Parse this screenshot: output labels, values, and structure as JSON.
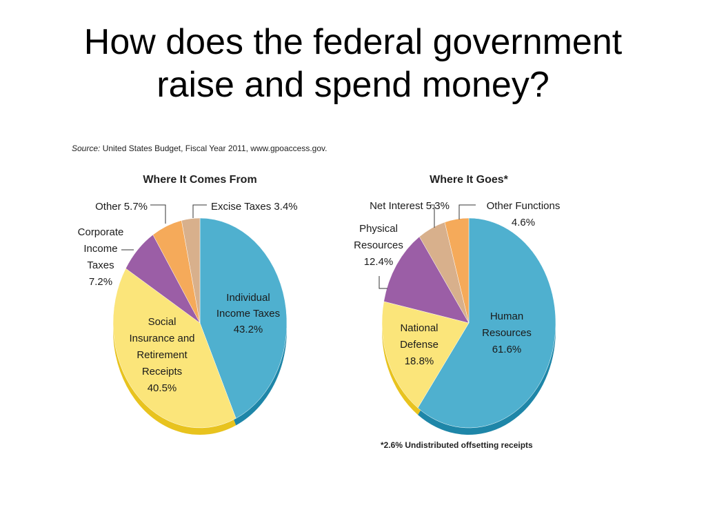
{
  "title": {
    "line1": "How does the federal government",
    "line2": "raise and spend money?"
  },
  "source": {
    "prefix": "Source:",
    "text": "United States Budget, Fiscal Year 2011, www.gpoaccess.gov."
  },
  "footnote": "*2.6% Undistributed offsetting receipts",
  "chart_data": [
    {
      "type": "pie",
      "title": "Where It Comes From",
      "start": "top",
      "direction": "clockwise",
      "slices": [
        {
          "label": "Individual Income Taxes",
          "value": 43.2,
          "color": "#4fb0cf"
        },
        {
          "label": "Social Insurance and Retirement Receipts",
          "value": 40.5,
          "color": "#fbe57a"
        },
        {
          "label": "Corporate Income Taxes",
          "value": 7.2,
          "color": "#9b5ea6"
        },
        {
          "label": "Other",
          "value": 5.7,
          "color": "#f5aa5a"
        },
        {
          "label": "Excise Taxes",
          "value": 3.4,
          "color": "#d8b08c"
        }
      ],
      "labels": {
        "individual": [
          "Individual",
          "Income Taxes",
          "43.2%"
        ],
        "social": [
          "Social",
          "Insurance and",
          "Retirement",
          "Receipts",
          "40.5%"
        ],
        "corporate": [
          "Corporate",
          "Income",
          "Taxes",
          "7.2%"
        ],
        "other": "Other 5.7%",
        "excise": "Excise Taxes 3.4%"
      }
    },
    {
      "type": "pie",
      "title": "Where It Goes*",
      "start": "top",
      "direction": "clockwise",
      "slices": [
        {
          "label": "Human Resources",
          "value": 61.6,
          "color": "#4fb0cf"
        },
        {
          "label": "National Defense",
          "value": 18.8,
          "color": "#fbe57a"
        },
        {
          "label": "Physical Resources",
          "value": 12.4,
          "color": "#9b5ea6"
        },
        {
          "label": "Net Interest",
          "value": 5.3,
          "color": "#d8b08c"
        },
        {
          "label": "Other Functions",
          "value": 4.6,
          "color": "#f5aa5a"
        }
      ],
      "labels": {
        "human": [
          "Human",
          "Resources",
          "61.6%"
        ],
        "defense": [
          "National",
          "Defense",
          "18.8%"
        ],
        "physical": [
          "Physical",
          "Resources",
          "12.4%"
        ],
        "interest": "Net Interest 5.3%",
        "other": [
          "Other Functions",
          "4.6%"
        ]
      }
    }
  ]
}
